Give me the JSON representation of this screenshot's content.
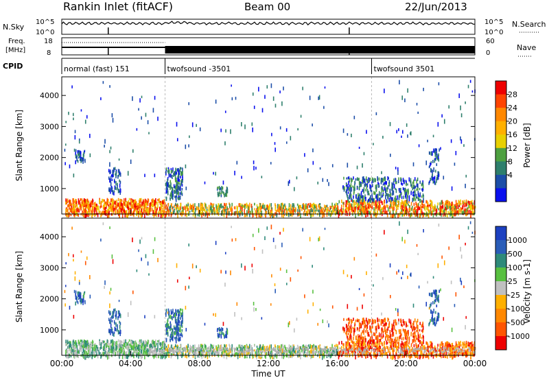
{
  "header": {
    "title": "Rankin Inlet (fitACF)",
    "beam": "Beam 00",
    "date": "22/Jun/2013"
  },
  "status_panel": {
    "nsky_label": "N.Sky",
    "nsearch_label": "N.Search",
    "noise_ticks": [
      "10^5",
      "10^0"
    ],
    "freq_label_1": "Freq.",
    "freq_label_2": "[MHz]",
    "freq_ticks": [
      "18",
      "8"
    ],
    "nave_label": "Nave",
    "nave_ticks": [
      "60",
      "0"
    ],
    "cpid_label": "CPID",
    "cpid_segments": [
      {
        "label": "normal (fast) 151",
        "start": 0,
        "end": 6
      },
      {
        "label": "twofsound -3501",
        "start": 6,
        "end": 18
      },
      {
        "label": "twofsound 3501",
        "start": 18,
        "end": 24
      }
    ]
  },
  "chart_data": [
    {
      "type": "heatmap",
      "variable": "Power",
      "xlabel": "",
      "ylabel": "Slant Range [km]",
      "x_range_hours": [
        0,
        24
      ],
      "y_range_km": [
        180,
        4600
      ],
      "y_ticks": [
        1000,
        2000,
        3000,
        4000
      ],
      "colorbar_label": "Power [dB]",
      "colorbar_ticks": [
        "28",
        "24",
        "20",
        "16",
        "12",
        "8",
        "4"
      ],
      "colorbar_colors": [
        "#ee0000",
        "#ff4400",
        "#ff8800",
        "#ffb000",
        "#e8d000",
        "#4ea040",
        "#2e7f6c",
        "#1c4ea8",
        "#0a10ee"
      ]
    },
    {
      "type": "heatmap",
      "variable": "Velocity",
      "xlabel": "Time UT",
      "ylabel": "Slant Range [km]",
      "x_range_hours": [
        0,
        24
      ],
      "x_ticks": [
        "00:00",
        "04:00",
        "08:00",
        "12:00",
        "16:00",
        "20:00",
        "00:00"
      ],
      "y_range_km": [
        180,
        4600
      ],
      "y_ticks": [
        1000,
        2000,
        3000,
        4000
      ],
      "colorbar_label": "Velocity [m s-1]",
      "colorbar_ticks": [
        "1000",
        "500",
        "100",
        "25",
        "-25",
        "-100",
        "-500",
        "-1000"
      ],
      "colorbar_colors": [
        "#1c40c0",
        "#2a5db8",
        "#2e8a7a",
        "#58c040",
        "#c0c0c0",
        "#ffb000",
        "#ff8800",
        "#ff5500",
        "#ee0000"
      ],
      "ground_scatter_color": "#b0b0b0"
    }
  ]
}
